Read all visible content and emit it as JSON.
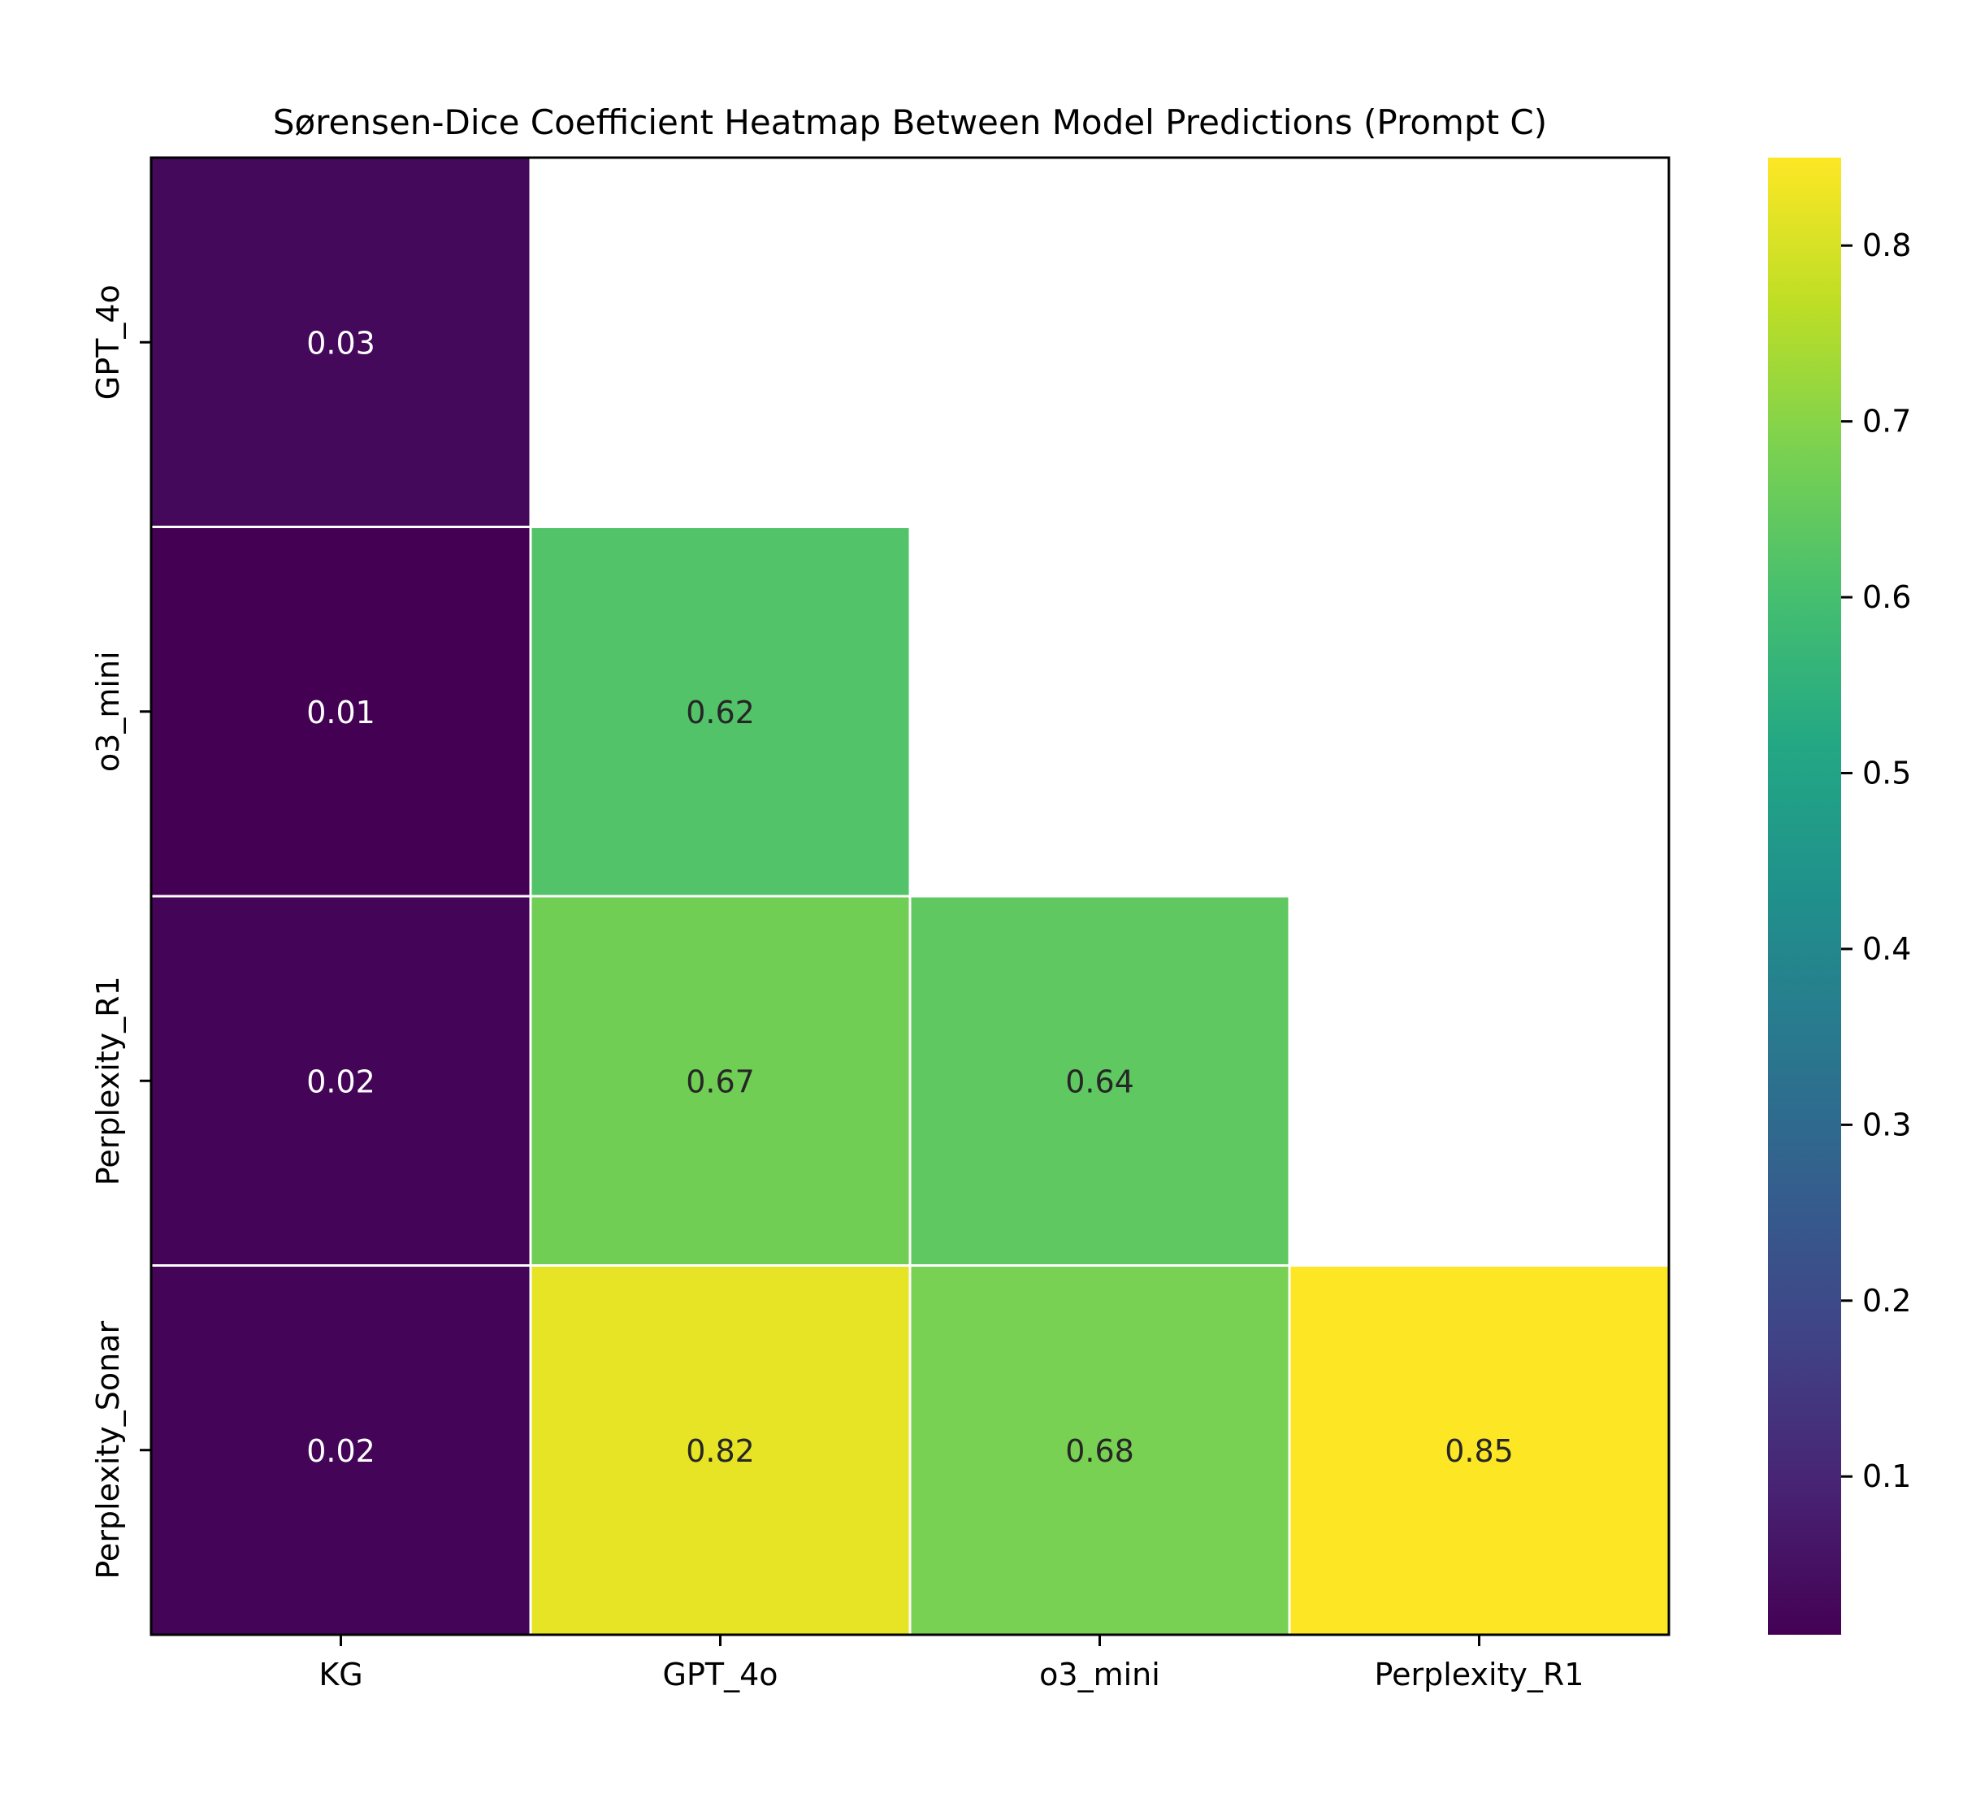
{
  "chart_data": {
    "type": "heatmap",
    "title": "Sørensen-Dice Coefficient Heatmap Between Model Predictions (Prompt C)",
    "xlabel": "",
    "ylabel": "",
    "x_categories": [
      "KG",
      "GPT_4o",
      "o3_mini",
      "Perplexity_R1"
    ],
    "y_categories": [
      "GPT_4o",
      "o3_mini",
      "Perplexity_R1",
      "Perplexity_Sonar"
    ],
    "values": [
      [
        0.03,
        null,
        null,
        null
      ],
      [
        0.01,
        0.62,
        null,
        null
      ],
      [
        0.02,
        0.67,
        0.64,
        null
      ],
      [
        0.02,
        0.82,
        0.68,
        0.85
      ]
    ],
    "value_labels": [
      [
        "0.03",
        "",
        "",
        ""
      ],
      [
        "0.01",
        "0.62",
        "",
        ""
      ],
      [
        "0.02",
        "0.67",
        "0.64",
        ""
      ],
      [
        "0.02",
        "0.82",
        "0.68",
        "0.85"
      ]
    ],
    "colormap": "viridis",
    "colorbar": {
      "range": [
        0.01,
        0.85
      ],
      "ticks": [
        0.1,
        0.2,
        0.3,
        0.4,
        0.5,
        0.6,
        0.7,
        0.8
      ],
      "tick_labels": [
        "0.1",
        "0.2",
        "0.3",
        "0.4",
        "0.5",
        "0.6",
        "0.7",
        "0.8"
      ]
    },
    "grid": false,
    "mask": "upper-triangle"
  }
}
